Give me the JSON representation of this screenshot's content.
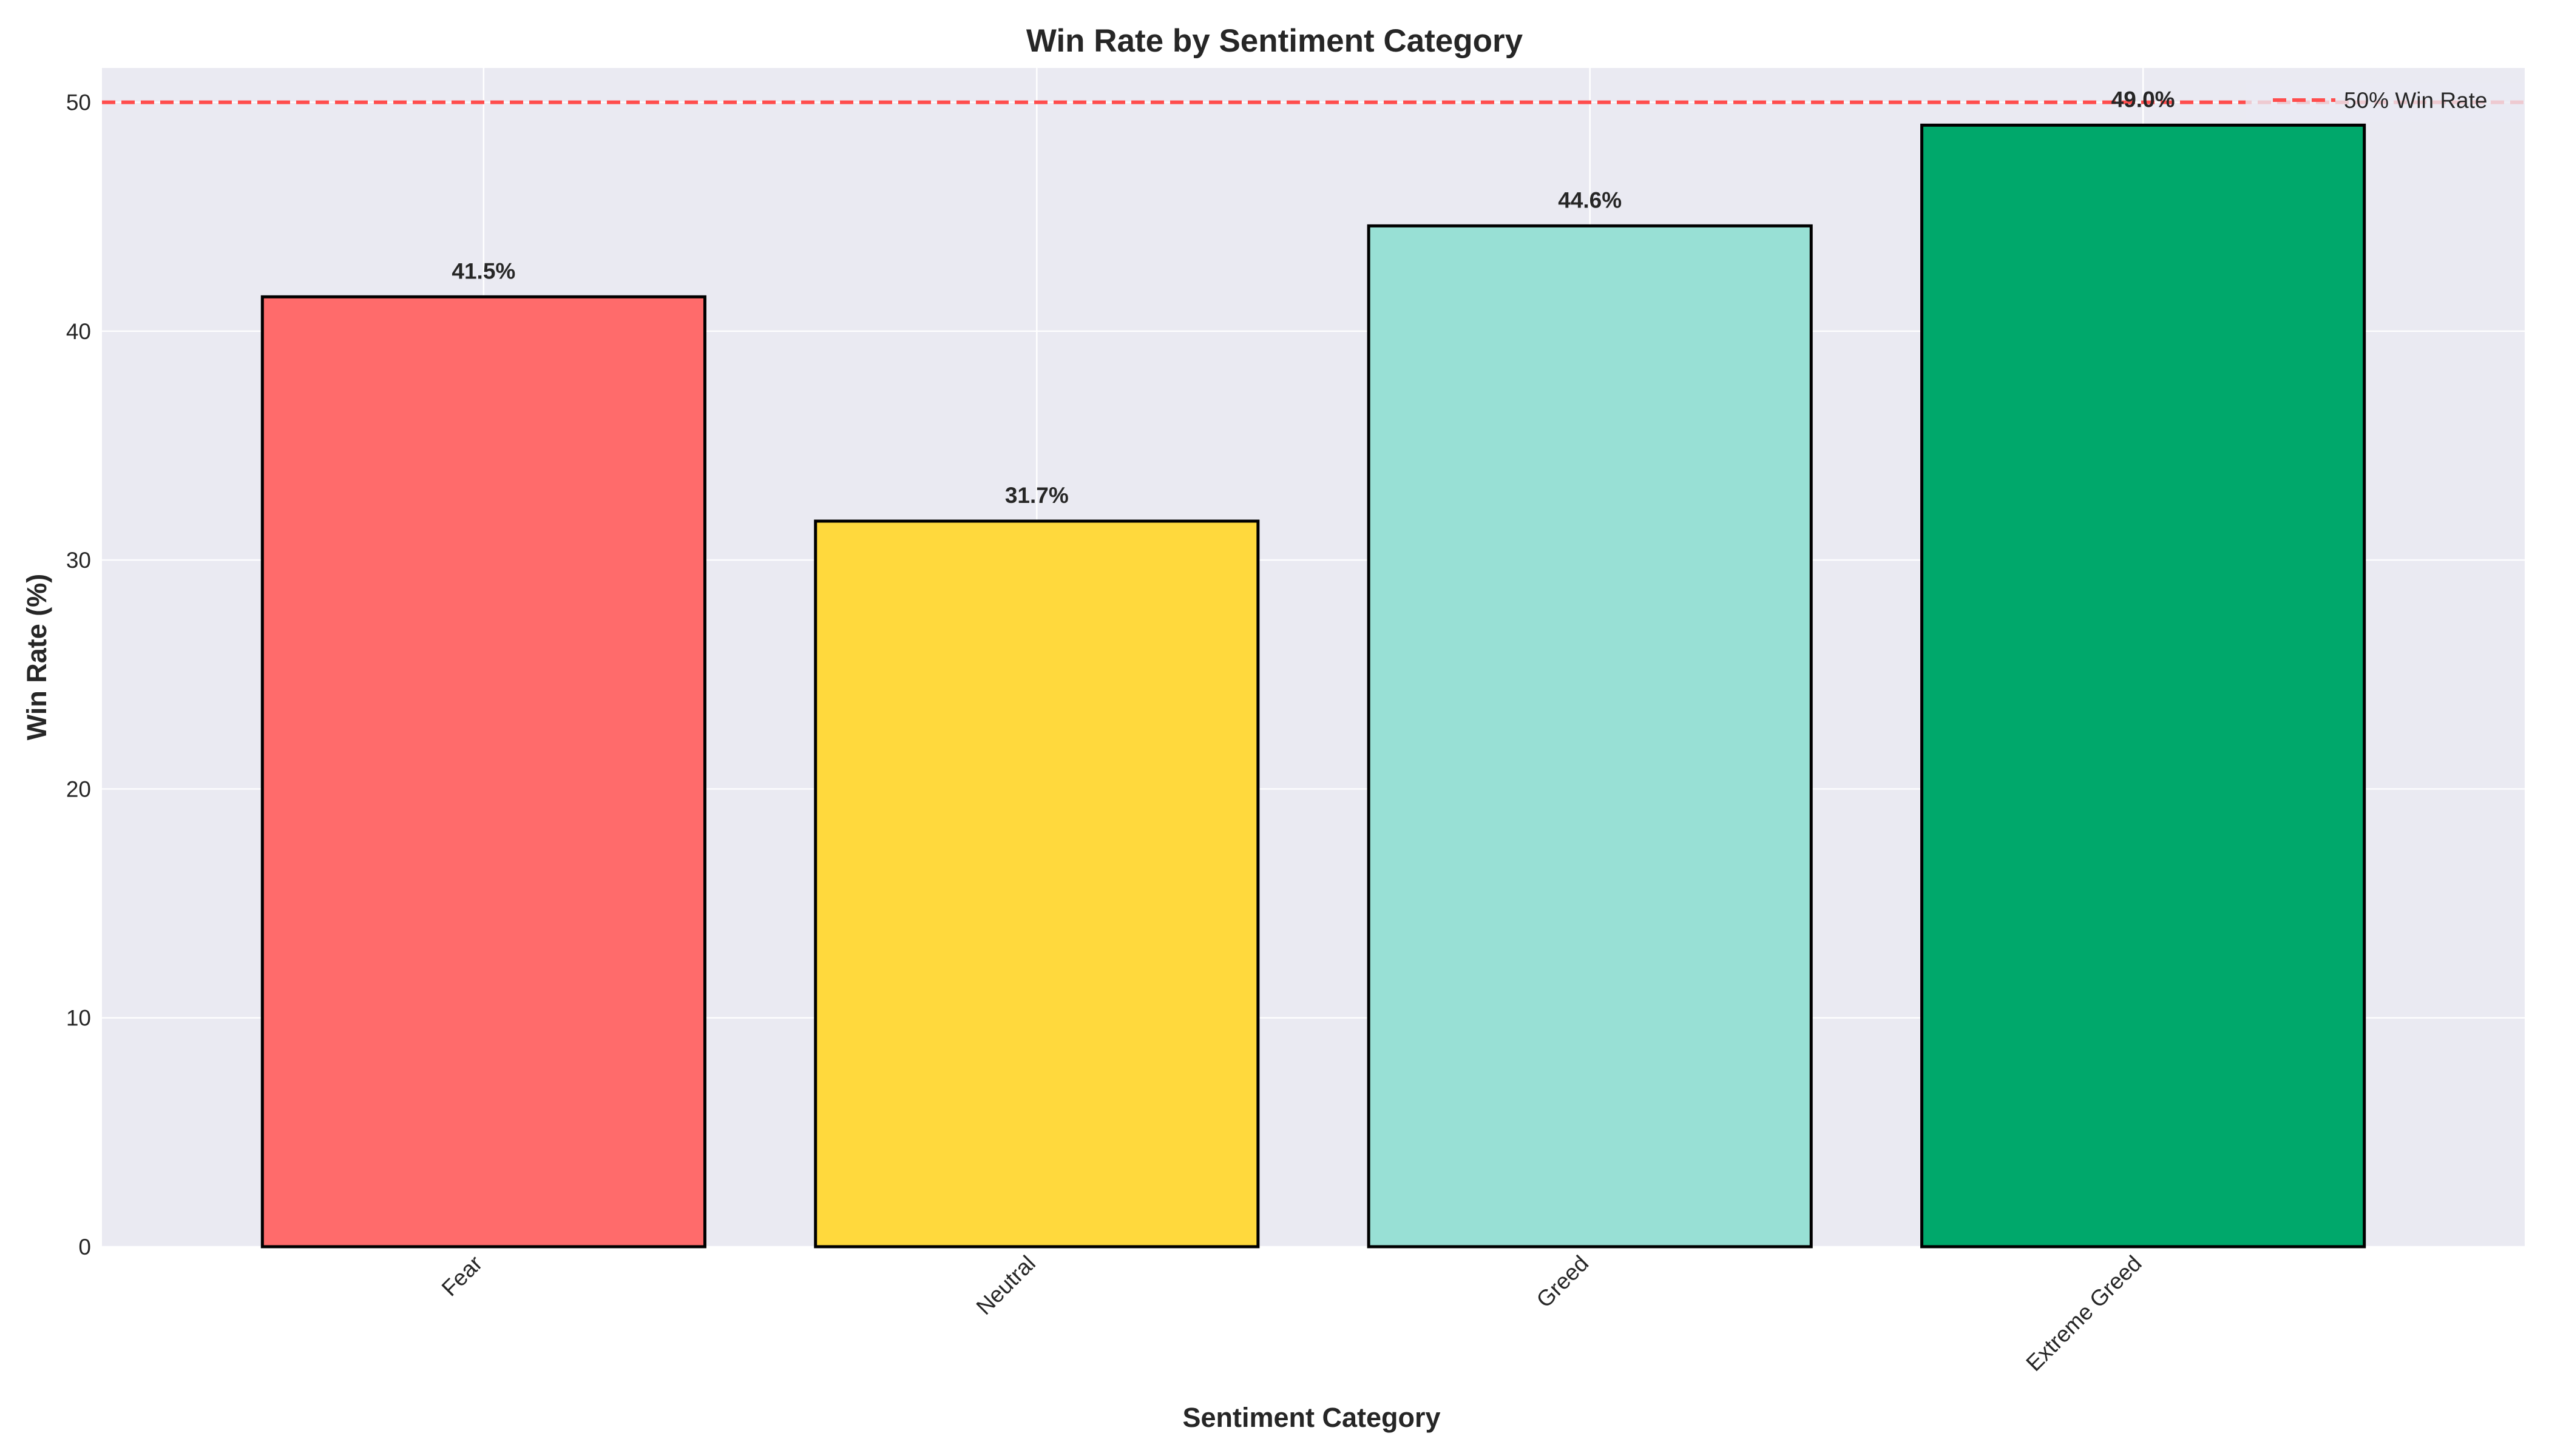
{
  "chart_data": {
    "type": "bar",
    "title": "Win Rate by Sentiment Category",
    "xlabel": "Sentiment Category",
    "ylabel": "Win Rate (%)",
    "categories": [
      "Fear",
      "Neutral",
      "Greed",
      "Extreme Greed"
    ],
    "values": [
      41.5,
      31.7,
      44.6,
      49.0
    ],
    "data_labels": [
      "41.5%",
      "31.7%",
      "44.6%",
      "49.0%"
    ],
    "bar_colors": [
      "#ff6b6b",
      "#ffd93d",
      "#98e0d5",
      "#00a86b"
    ],
    "ylim": [
      0,
      51.5
    ],
    "yticks": [
      0,
      10,
      20,
      30,
      40,
      50
    ],
    "grid": true,
    "reference_line": {
      "value": 50,
      "label": "50% Win Rate",
      "color": "#ff4d4d",
      "style": "dashed"
    },
    "legend_position": "top-right",
    "background_color": "#eaeaf2"
  }
}
